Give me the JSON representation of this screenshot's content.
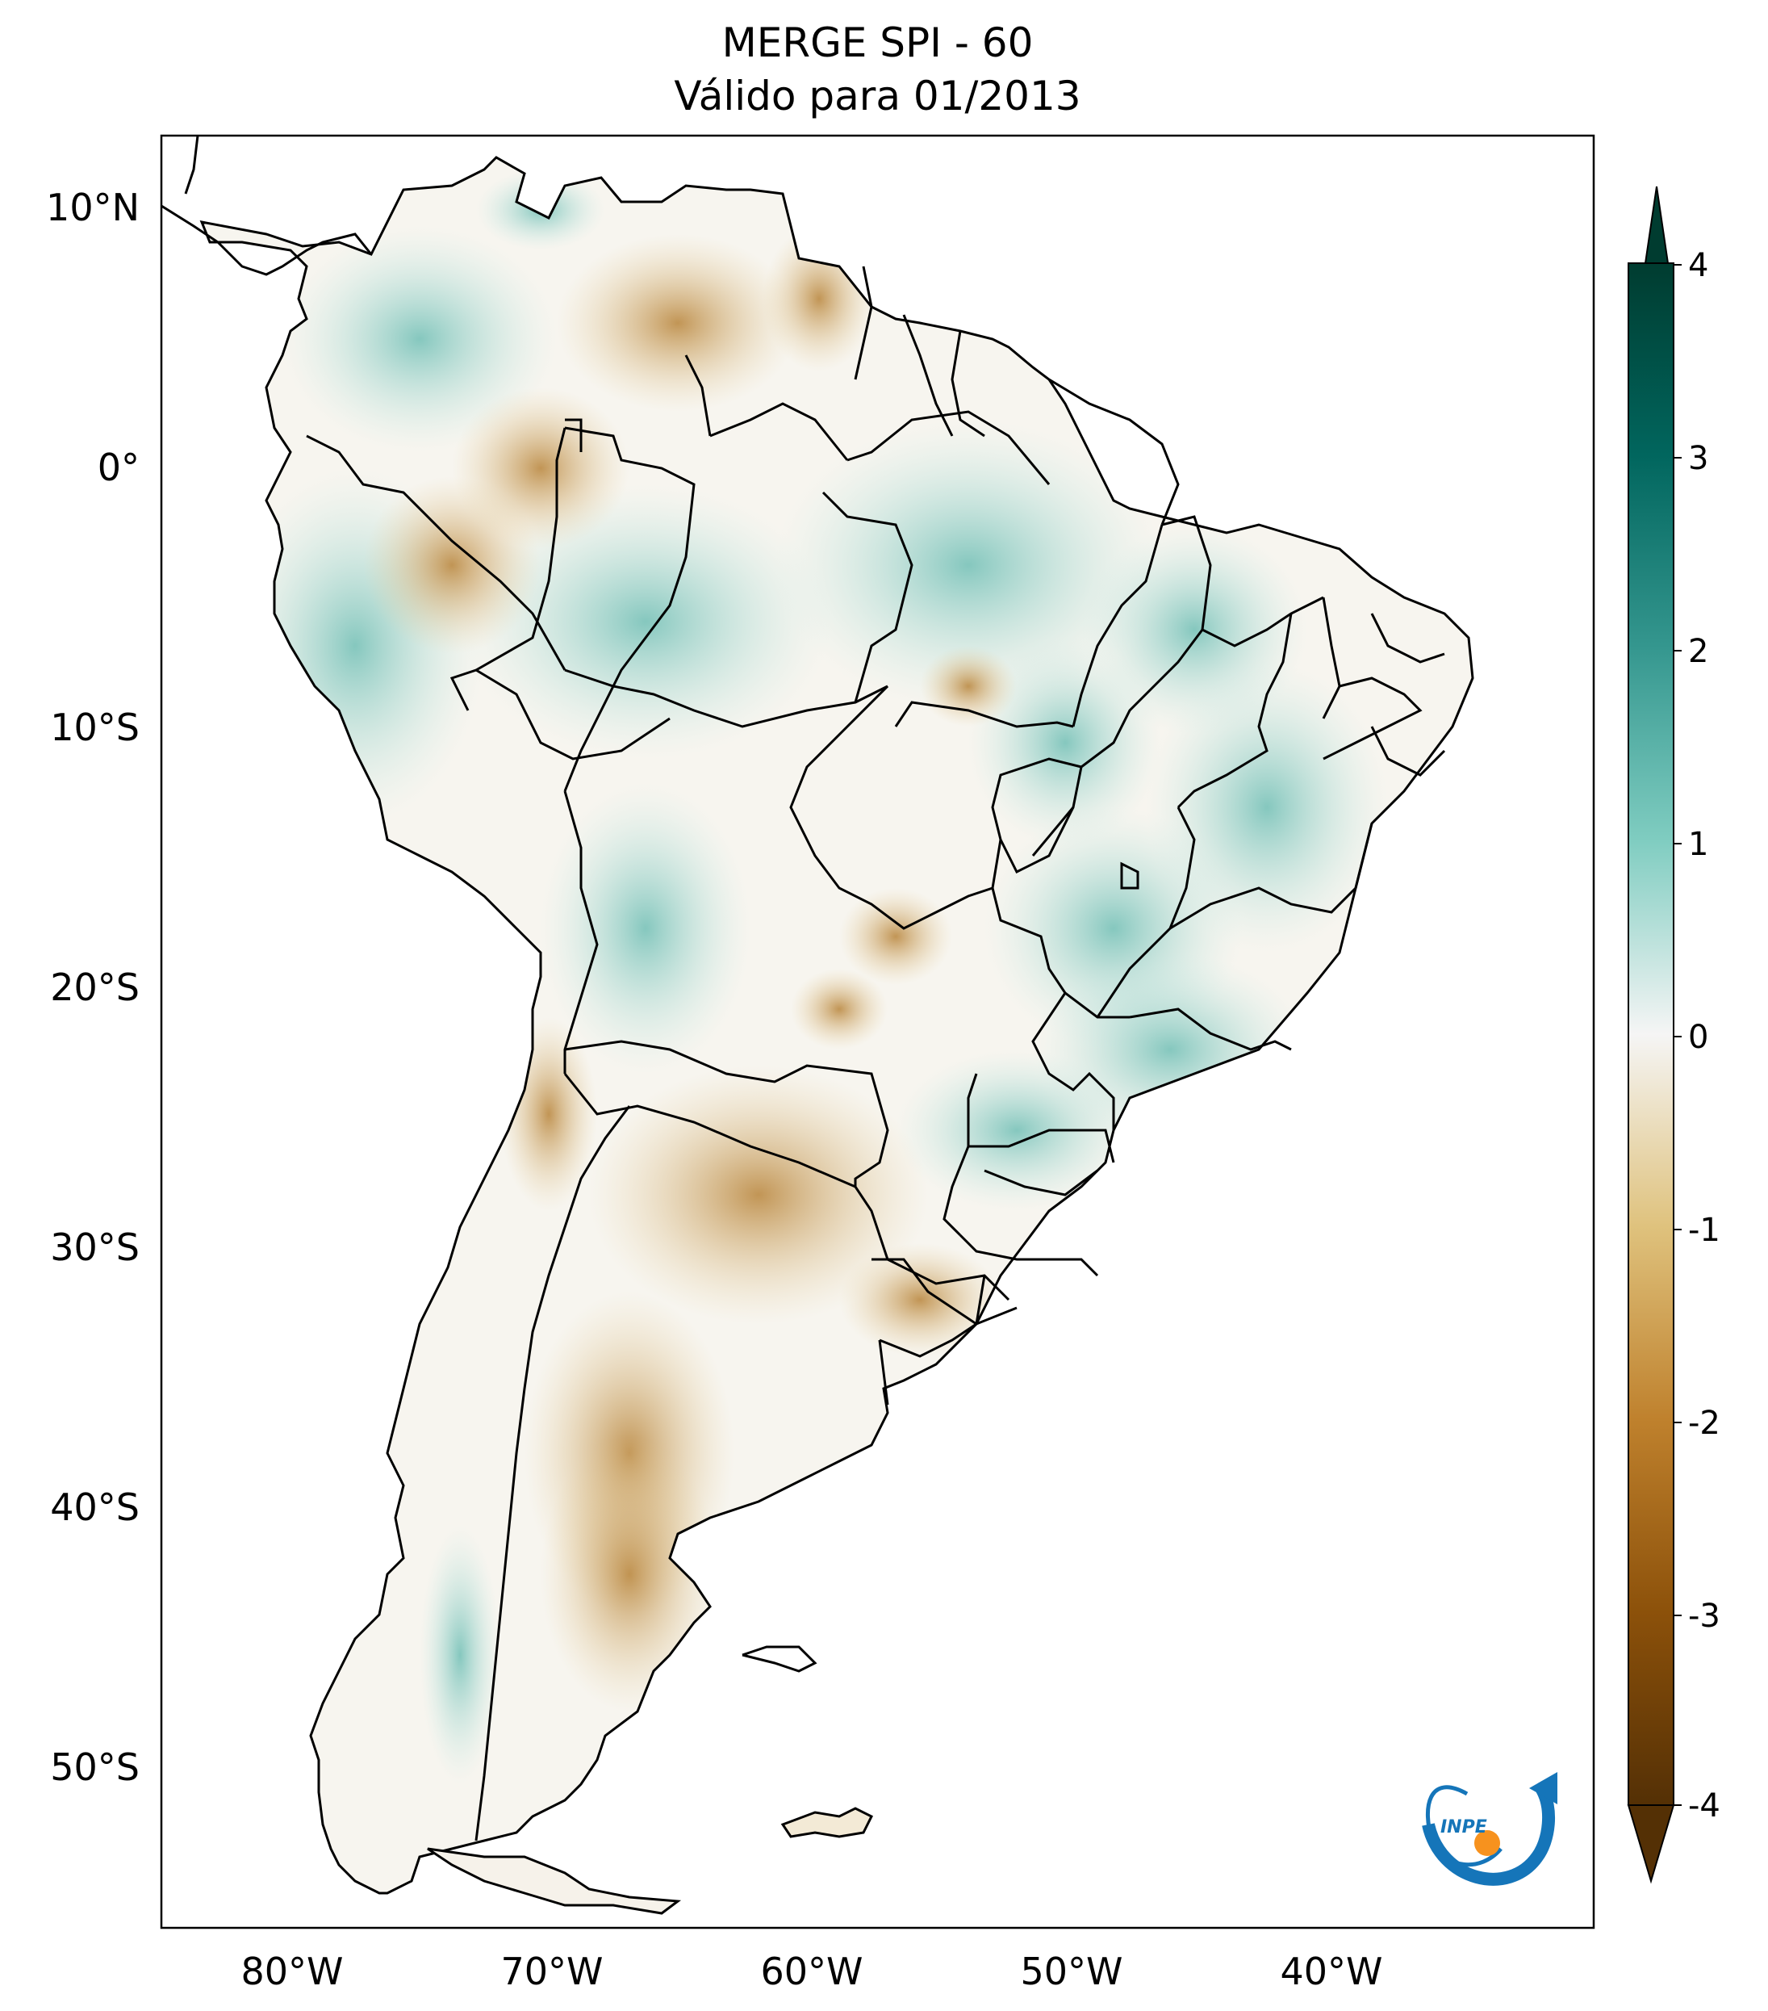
{
  "title": {
    "line1": "MERGE   SPI - 60",
    "line2": "Válido para 01/2013"
  },
  "map": {
    "lat_labels": [
      "10°N",
      "0°",
      "10°S",
      "20°S",
      "30°S",
      "40°S",
      "50°S"
    ],
    "lon_labels": [
      "80°W",
      "70°W",
      "60°W",
      "50°W",
      "40°W"
    ],
    "lon_range": [
      -85,
      -30
    ],
    "lat_range": [
      -56,
      13
    ]
  },
  "colorbar": {
    "ticks": [
      "4",
      "3",
      "2",
      "1",
      "0",
      "-1",
      "-2",
      "-3",
      "-4"
    ],
    "range": [
      -4,
      4
    ],
    "extend": "both",
    "colors": {
      "min": "#543005",
      "dry_strong": "#8c510a",
      "dry": "#d8b365",
      "dry_light": "#f6e8c3",
      "neutral": "#f5f5f5",
      "wet_light": "#c7eae5",
      "wet": "#5ab4ac",
      "wet_strong": "#01665e",
      "max": "#003c30"
    }
  },
  "logo": {
    "text": "INPE"
  }
}
